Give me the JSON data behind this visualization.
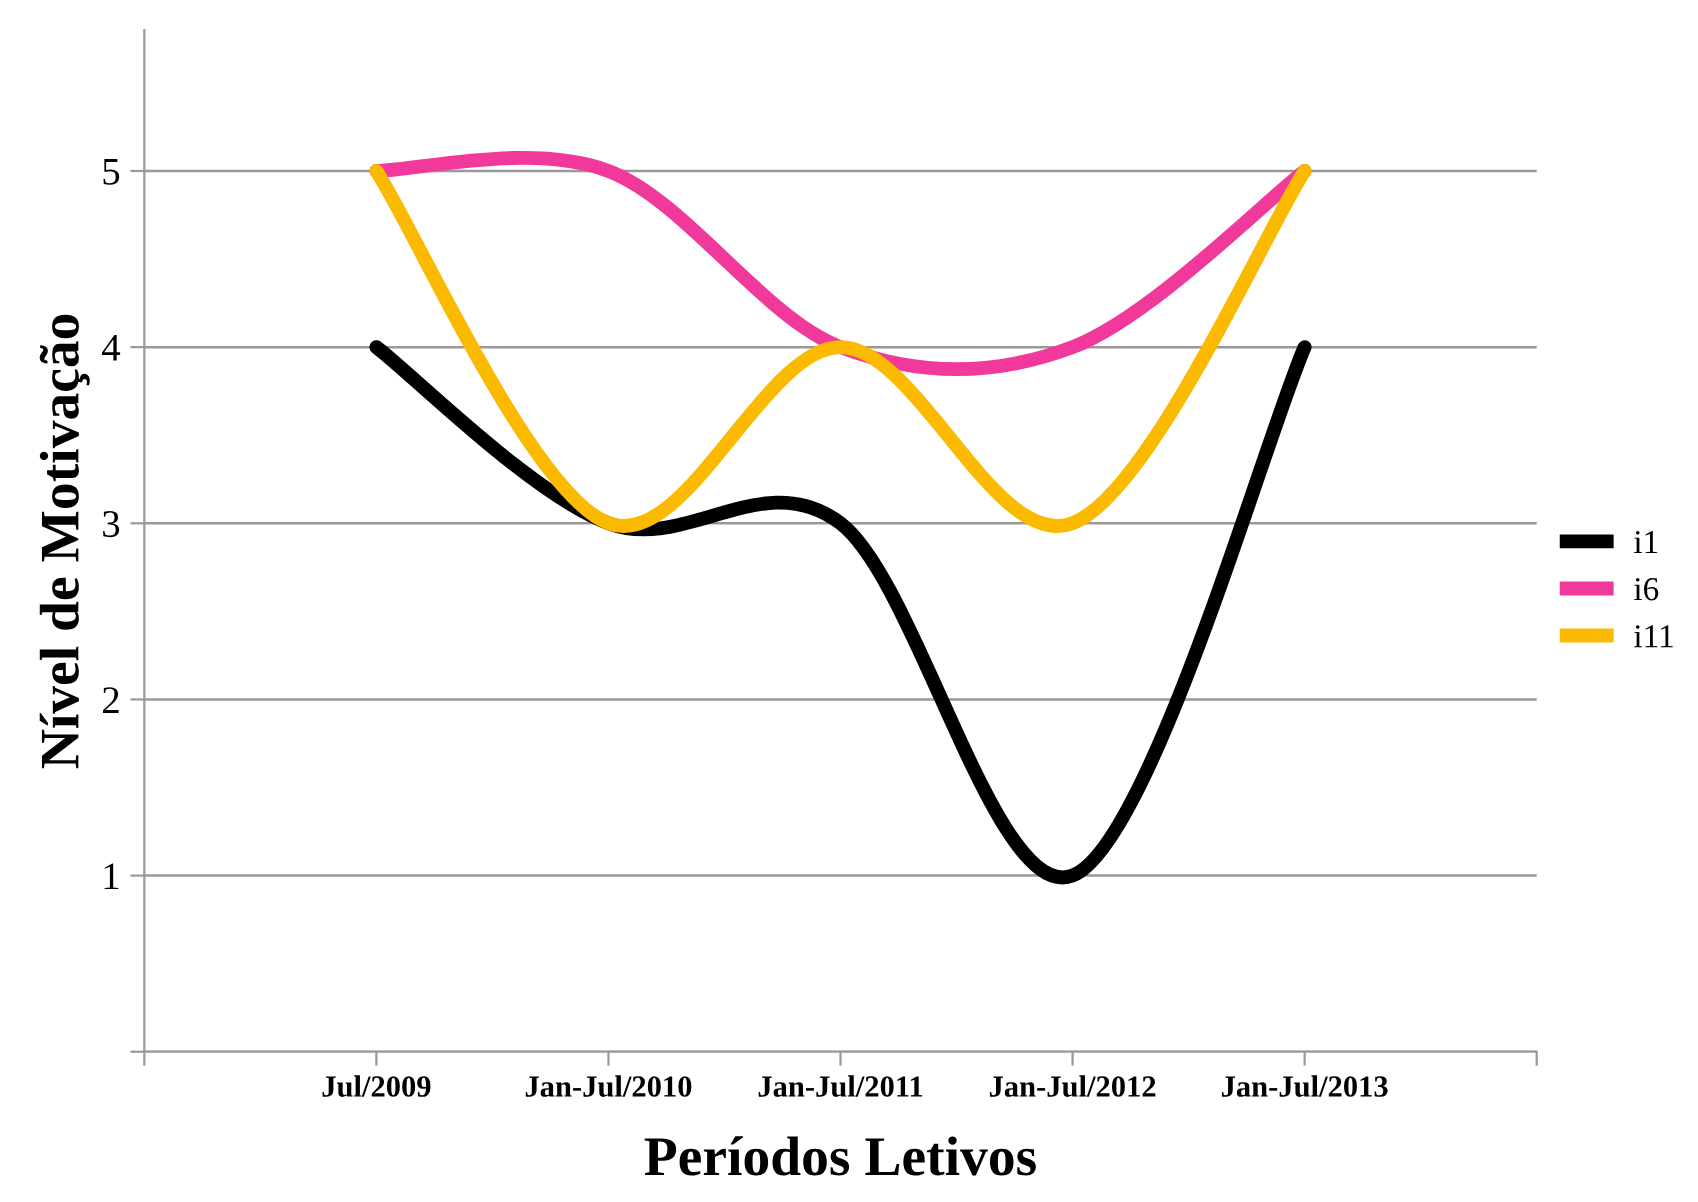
{
  "chart_data": {
    "type": "line",
    "xlabel": "Períodos Letivos",
    "ylabel": "Nível de Motivação",
    "categories": [
      null,
      "Jul/2009",
      "Jan-Jul/2010",
      "Jan-Jul/2011",
      "Jan-Jul/2012",
      "Jan-Jul/2013",
      null
    ],
    "series": [
      {
        "name": "i1",
        "color": "#000000",
        "values": [
          null,
          4,
          3,
          3,
          1,
          4,
          null
        ]
      },
      {
        "name": "i6",
        "color": "#f0399a",
        "values": [
          null,
          5,
          5,
          4,
          4,
          5,
          null
        ]
      },
      {
        "name": "i11",
        "color": "#fbb900",
        "values": [
          null,
          5,
          3,
          4,
          3,
          5,
          null
        ]
      }
    ],
    "ylim": [
      0,
      5.8
    ],
    "yticks": [
      {
        "value": 0,
        "label": null
      },
      1,
      2,
      3,
      4,
      5
    ],
    "grid": "y",
    "legend": "right",
    "marker": "none",
    "line_style": "solid"
  }
}
